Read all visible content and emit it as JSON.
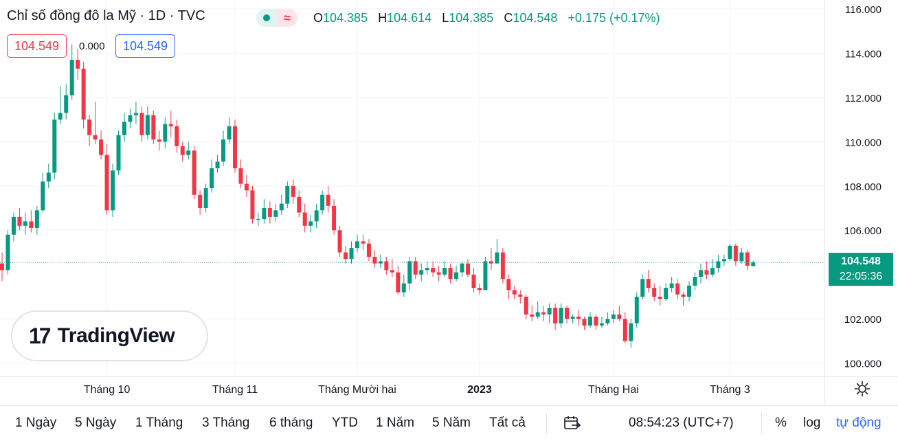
{
  "header": {
    "title": "Chỉ số đồng đô la Mỹ · 1D · TVC",
    "ohlc": [
      {
        "key": "O",
        "value": "104.385"
      },
      {
        "key": "H",
        "value": "104.614"
      },
      {
        "key": "L",
        "value": "104.385"
      },
      {
        "key": "C",
        "value": "104.548"
      }
    ],
    "change": "+0.175 (+0.17%)",
    "status_wave_glyph": "≈"
  },
  "quote": {
    "sell": "104.549",
    "spread": "0.000",
    "buy": "104.549"
  },
  "last_price": {
    "value": "104.548",
    "countdown": "22:05:36"
  },
  "logo": {
    "mark": "17",
    "text": "TradingView"
  },
  "toolbar": {
    "ranges": [
      "1 Ngày",
      "5 Ngày",
      "1 Tháng",
      "3 Tháng",
      "6 tháng",
      "YTD",
      "1 Năm",
      "5 Năm",
      "Tất cả"
    ],
    "time": "08:54:23 (UTC+7)",
    "percent": "%",
    "log": "log",
    "auto": "tự động"
  },
  "icons": {
    "date_range": "calendar-arrow-icon",
    "settings": "gear-icon",
    "market_status": "market-open-dot-icon"
  },
  "colors": {
    "up": "#089981",
    "down": "#f23645",
    "grid": "#f0f3fa",
    "accent": "#2962ff"
  },
  "chart_data": {
    "type": "candlestick",
    "symbol": "Chỉ số đồng đô la Mỹ",
    "interval": "1D",
    "exchange": "TVC",
    "y_ticks": [
      "116.000",
      "114.000",
      "112.000",
      "110.000",
      "108.000",
      "106.000",
      "102.000",
      "100.000"
    ],
    "ylim": [
      99.4,
      116.4
    ],
    "x_ticks": [
      {
        "label": "Tháng 10",
        "index": 18
      },
      {
        "label": "Tháng 11",
        "index": 40
      },
      {
        "label": "Tháng Mười hai",
        "index": 61
      },
      {
        "label": "2023",
        "index": 82
      },
      {
        "label": "Tháng Hai",
        "index": 105
      },
      {
        "label": "Tháng 3",
        "index": 125
      }
    ],
    "x_tick_bold": "2023",
    "last_price": 104.548,
    "candles": [
      [
        104.5,
        104.2,
        105.0,
        103.7
      ],
      [
        104.2,
        105.8,
        106.0,
        104.0
      ],
      [
        105.8,
        106.6,
        106.8,
        105.5
      ],
      [
        106.6,
        106.2,
        107.0,
        106.0
      ],
      [
        106.2,
        106.4,
        106.8,
        105.8
      ],
      [
        106.4,
        106.1,
        106.9,
        105.9
      ],
      [
        106.1,
        106.9,
        107.1,
        105.8
      ],
      [
        106.9,
        108.2,
        108.6,
        106.8
      ],
      [
        108.2,
        108.6,
        109.0,
        107.9
      ],
      [
        108.6,
        111.0,
        111.3,
        108.3
      ],
      [
        111.0,
        111.3,
        112.5,
        110.8
      ],
      [
        111.3,
        112.1,
        112.6,
        111.0
      ],
      [
        112.1,
        113.7,
        114.4,
        111.9
      ],
      [
        113.7,
        113.3,
        114.2,
        112.8
      ],
      [
        113.3,
        111.0,
        113.6,
        110.6
      ],
      [
        111.0,
        110.3,
        111.2,
        109.8
      ],
      [
        110.3,
        110.1,
        111.8,
        109.9
      ],
      [
        110.1,
        109.4,
        110.5,
        109.2
      ],
      [
        109.4,
        106.9,
        109.9,
        106.7
      ],
      [
        106.9,
        108.7,
        109.0,
        106.6
      ],
      [
        108.7,
        110.3,
        110.5,
        108.5
      ],
      [
        110.3,
        110.9,
        111.3,
        110.0
      ],
      [
        110.9,
        111.2,
        111.5,
        110.6
      ],
      [
        111.2,
        111.3,
        111.8,
        110.8
      ],
      [
        111.3,
        110.3,
        111.6,
        110.0
      ],
      [
        110.3,
        111.2,
        111.6,
        110.1
      ],
      [
        111.2,
        110.1,
        111.4,
        109.9
      ],
      [
        110.1,
        110.0,
        110.5,
        109.6
      ],
      [
        110.0,
        110.8,
        111.1,
        109.7
      ],
      [
        110.8,
        110.7,
        111.4,
        110.2
      ],
      [
        110.7,
        109.8,
        111.0,
        109.5
      ],
      [
        109.8,
        109.4,
        110.0,
        109.1
      ],
      [
        109.4,
        109.6,
        110.0,
        109.2
      ],
      [
        109.6,
        107.6,
        109.8,
        107.4
      ],
      [
        107.6,
        107.0,
        107.8,
        106.7
      ],
      [
        107.0,
        107.9,
        108.1,
        106.8
      ],
      [
        107.9,
        108.8,
        109.2,
        107.7
      ],
      [
        108.8,
        109.1,
        109.4,
        108.6
      ],
      [
        109.1,
        110.1,
        110.5,
        108.9
      ],
      [
        110.1,
        110.7,
        111.1,
        109.9
      ],
      [
        110.7,
        108.8,
        111.0,
        108.6
      ],
      [
        108.8,
        108.1,
        109.2,
        107.9
      ],
      [
        108.1,
        107.8,
        108.5,
        107.5
      ],
      [
        107.8,
        106.5,
        108.0,
        106.3
      ],
      [
        106.5,
        106.5,
        106.8,
        106.2
      ],
      [
        106.5,
        107.0,
        107.4,
        106.3
      ],
      [
        107.0,
        106.6,
        107.3,
        106.3
      ],
      [
        106.6,
        106.9,
        107.2,
        106.4
      ],
      [
        106.9,
        107.2,
        107.6,
        106.7
      ],
      [
        107.2,
        108.0,
        108.2,
        107.0
      ],
      [
        108.0,
        107.5,
        108.3,
        107.2
      ],
      [
        107.5,
        106.8,
        107.8,
        106.6
      ],
      [
        106.8,
        106.2,
        107.2,
        105.9
      ],
      [
        106.2,
        106.4,
        106.7,
        105.9
      ],
      [
        106.4,
        106.9,
        107.2,
        106.1
      ],
      [
        106.9,
        107.6,
        107.8,
        106.7
      ],
      [
        107.6,
        107.1,
        108.0,
        106.8
      ],
      [
        107.1,
        106.0,
        107.4,
        105.8
      ],
      [
        106.0,
        105.0,
        106.2,
        104.8
      ],
      [
        105.0,
        104.7,
        105.3,
        104.5
      ],
      [
        104.7,
        105.2,
        105.5,
        104.5
      ],
      [
        105.2,
        105.5,
        105.8,
        105.0
      ],
      [
        105.5,
        105.4,
        105.8,
        105.1
      ],
      [
        105.4,
        104.8,
        105.6,
        104.6
      ],
      [
        104.8,
        104.5,
        105.1,
        104.3
      ],
      [
        104.5,
        104.6,
        104.9,
        104.3
      ],
      [
        104.6,
        104.2,
        104.8,
        104.0
      ],
      [
        104.2,
        104.1,
        104.7,
        103.9
      ],
      [
        104.1,
        103.2,
        104.4,
        103.1
      ],
      [
        103.2,
        103.6,
        104.0,
        103.0
      ],
      [
        103.6,
        104.6,
        104.8,
        103.3
      ],
      [
        104.6,
        104.0,
        104.8,
        103.8
      ],
      [
        104.0,
        104.2,
        104.5,
        103.7
      ],
      [
        104.2,
        104.3,
        104.6,
        104.0
      ],
      [
        104.3,
        104.1,
        104.6,
        103.9
      ],
      [
        104.1,
        104.0,
        104.4,
        103.7
      ],
      [
        104.0,
        104.3,
        104.6,
        103.9
      ],
      [
        104.3,
        103.8,
        104.5,
        103.6
      ],
      [
        103.8,
        104.1,
        104.4,
        103.7
      ],
      [
        104.1,
        104.5,
        104.6,
        103.9
      ],
      [
        104.5,
        104.0,
        104.7,
        103.9
      ],
      [
        104.0,
        103.4,
        104.3,
        103.2
      ],
      [
        103.4,
        103.3,
        103.6,
        103.1
      ],
      [
        103.3,
        104.6,
        104.8,
        103.3
      ],
      [
        104.6,
        104.5,
        105.2,
        104.2
      ],
      [
        104.5,
        105.0,
        105.6,
        104.5
      ],
      [
        105.0,
        103.8,
        105.2,
        103.6
      ],
      [
        103.8,
        103.3,
        104.0,
        102.9
      ],
      [
        103.3,
        103.1,
        103.5,
        102.9
      ],
      [
        103.1,
        103.0,
        103.3,
        102.7
      ],
      [
        103.0,
        102.2,
        103.1,
        102.0
      ],
      [
        102.2,
        102.1,
        102.6,
        101.9
      ],
      [
        102.1,
        102.3,
        102.8,
        102.0
      ],
      [
        102.3,
        102.2,
        102.6,
        101.9
      ],
      [
        102.2,
        102.5,
        102.7,
        101.8
      ],
      [
        102.5,
        101.8,
        102.7,
        101.5
      ],
      [
        101.8,
        102.5,
        102.7,
        101.6
      ],
      [
        102.5,
        102.0,
        102.6,
        101.8
      ],
      [
        102.0,
        102.1,
        102.2,
        101.8
      ],
      [
        102.1,
        102.0,
        102.4,
        101.7
      ],
      [
        102.0,
        101.7,
        102.1,
        101.5
      ],
      [
        101.7,
        102.1,
        102.3,
        101.6
      ],
      [
        102.1,
        101.7,
        102.2,
        101.5
      ],
      [
        101.7,
        101.8,
        102.1,
        101.6
      ],
      [
        101.8,
        102.0,
        102.3,
        101.7
      ],
      [
        102.0,
        102.2,
        102.4,
        101.8
      ],
      [
        102.2,
        102.0,
        102.6,
        101.9
      ],
      [
        102.0,
        101.0,
        102.3,
        100.9
      ],
      [
        101.0,
        101.8,
        102.0,
        100.7
      ],
      [
        101.8,
        103.0,
        103.2,
        101.6
      ],
      [
        103.0,
        103.8,
        104.0,
        102.9
      ],
      [
        103.8,
        103.4,
        104.2,
        103.2
      ],
      [
        103.4,
        103.0,
        103.6,
        102.8
      ],
      [
        103.0,
        102.9,
        103.5,
        102.6
      ],
      [
        102.9,
        103.4,
        103.6,
        102.8
      ],
      [
        103.4,
        103.6,
        103.9,
        103.2
      ],
      [
        103.6,
        103.1,
        103.8,
        102.9
      ],
      [
        103.1,
        103.0,
        103.2,
        102.6
      ],
      [
        103.0,
        103.5,
        103.7,
        102.8
      ],
      [
        103.5,
        103.9,
        104.1,
        103.3
      ],
      [
        103.9,
        104.2,
        104.5,
        103.6
      ],
      [
        104.2,
        104.0,
        104.6,
        103.8
      ],
      [
        104.0,
        104.3,
        104.7,
        103.9
      ],
      [
        104.3,
        104.6,
        104.9,
        104.1
      ],
      [
        104.6,
        104.7,
        104.9,
        104.4
      ],
      [
        104.7,
        105.3,
        105.4,
        104.6
      ],
      [
        105.3,
        104.6,
        105.4,
        104.4
      ],
      [
        104.6,
        105.0,
        105.2,
        104.5
      ],
      [
        105.0,
        104.4,
        105.1,
        104.2
      ],
      [
        104.385,
        104.548,
        104.614,
        104.385
      ]
    ]
  }
}
